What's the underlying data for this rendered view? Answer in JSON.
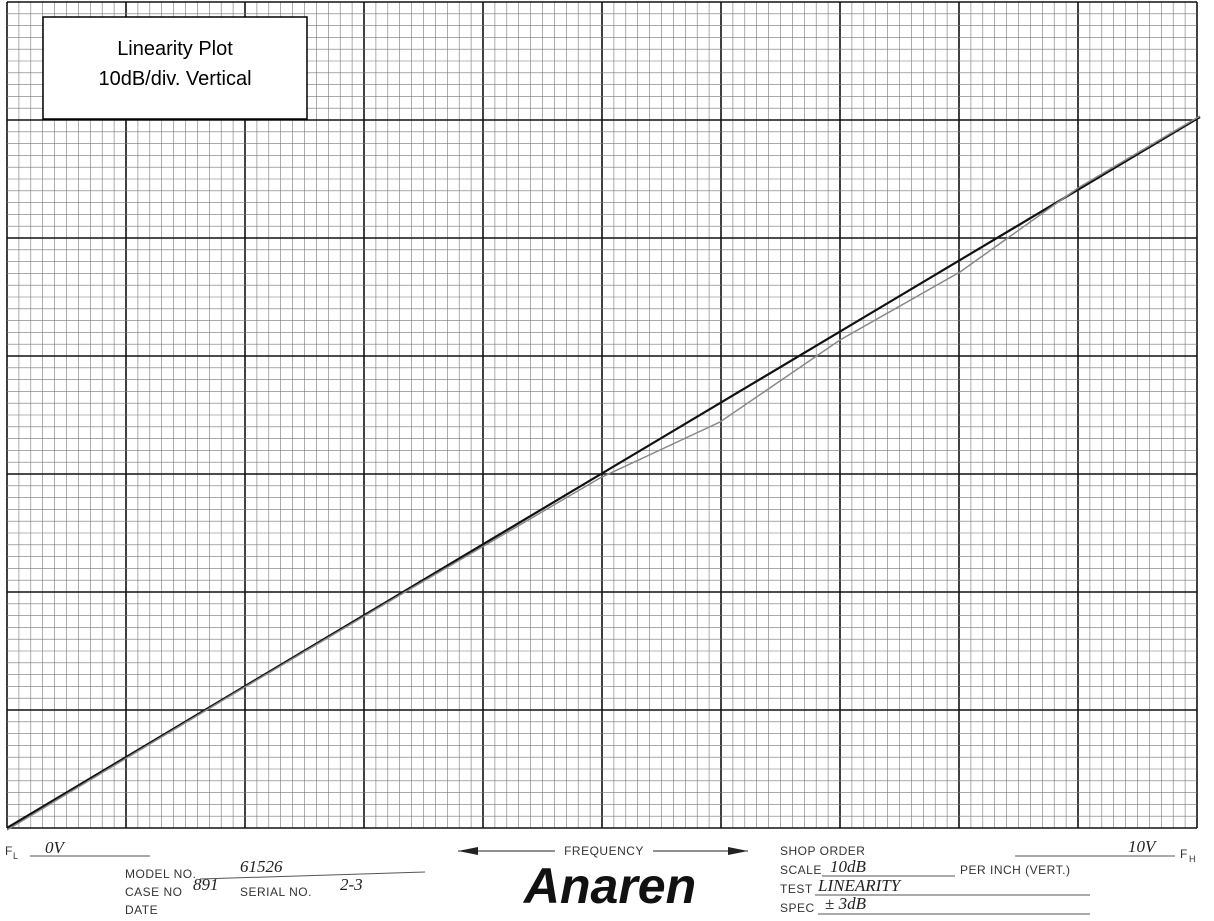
{
  "plot_box": {
    "title": "Linearity Plot",
    "subtitle": "10dB/div. Vertical"
  },
  "footer": {
    "f_low": "F",
    "f_low_sub": "L",
    "f_low_value": "0V",
    "model_label": "MODEL NO.",
    "model_value": "61526",
    "case_label": "CASE NO",
    "case_value": "891",
    "serial_label": "SERIAL NO.",
    "serial_value": "2-3",
    "date_label": "DATE",
    "frequency_label": "FREQUENCY",
    "logo": "Anaren",
    "shop_order_label": "SHOP ORDER",
    "f_high_value": "10V",
    "f_high": "F",
    "f_high_sub": "H",
    "scale_label": "SCALE",
    "scale_value": "10dB",
    "scale_unit": "PER INCH (VERT.)",
    "test_label": "TEST",
    "test_value": "LINEARITY",
    "spec_label": "SPEC",
    "spec_value": "± 3dB"
  }
}
